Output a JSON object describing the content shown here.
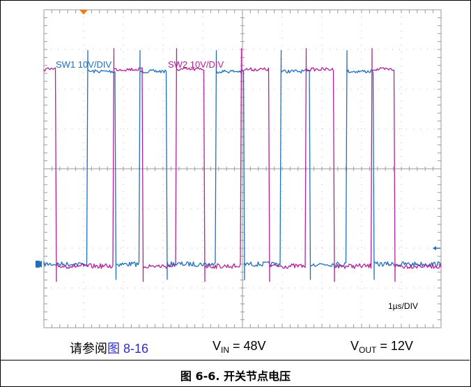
{
  "chart_data": {
    "type": "line",
    "grid": true,
    "x_divisions": 10,
    "y_divisions": 8,
    "timebase": "1µs/DIV",
    "series": [
      {
        "name": "SW1 10V/DIV",
        "color": "#1f6fbf",
        "low_level_div": 6.4,
        "high_level_div": 1.55,
        "pulses_div": [
          [
            1.1,
            1.8
          ],
          [
            2.4,
            3.08
          ],
          [
            4.34,
            5.04
          ],
          [
            5.96,
            6.7
          ],
          [
            7.63,
            8.3
          ]
        ]
      },
      {
        "name": "SW2 10V/DIV",
        "color": "#b4209a",
        "low_level_div": 6.45,
        "high_level_div": 1.5,
        "pulses_div": [
          [
            0.0,
            0.3
          ],
          [
            1.76,
            2.48
          ],
          [
            3.34,
            4.04
          ],
          [
            4.96,
            5.66
          ],
          [
            6.58,
            7.3
          ],
          [
            8.24,
            8.82
          ]
        ]
      }
    ],
    "labels": {
      "ch1": "SW1 10V/DIV",
      "ch2": "SW2 10V/DIV",
      "timebase": "1µs/DIV"
    }
  },
  "info": {
    "ref_prefix": "请参阅",
    "ref_link": "图 8-16",
    "vin_main": "V",
    "vin_sub": "IN",
    "vin_val": " = 48V",
    "vout_main": "V",
    "vout_sub": "OUT",
    "vout_val": " = 12V"
  },
  "caption": "图 6-6. 开关节点电压"
}
